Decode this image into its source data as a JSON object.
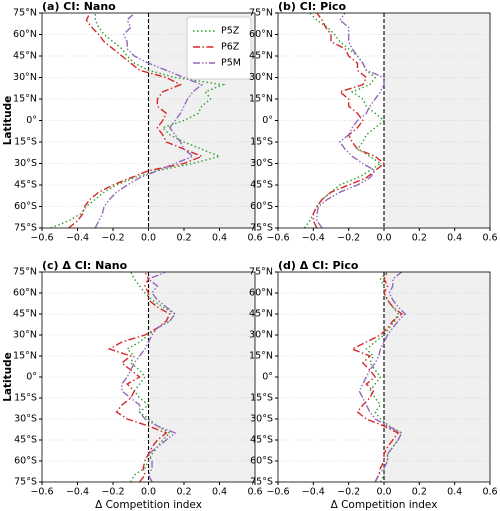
{
  "chart_data": [
    {
      "type": "line",
      "title": "(a) CI: Nano",
      "ylabel": "Latitude",
      "legend": "upper right",
      "grid": true,
      "shade_positive": true,
      "refline": 0,
      "xlim": [
        -0.6,
        0.6
      ],
      "xticks": [
        {
          "value": -0.6,
          "label": "−0.6"
        },
        {
          "value": -0.4,
          "label": "−0.4"
        },
        {
          "value": -0.2,
          "label": "−0.2"
        },
        {
          "value": 0,
          "label": "0.0"
        },
        {
          "value": 0.2,
          "label": "0.2"
        },
        {
          "value": 0.4,
          "label": "0.4"
        },
        {
          "value": 0.6,
          "label": "0.6"
        }
      ],
      "ylim": [
        -75,
        75
      ],
      "yticks": [
        {
          "value": -75,
          "label": "75°S"
        },
        {
          "value": -60,
          "label": "60°S"
        },
        {
          "value": -45,
          "label": "45°S"
        },
        {
          "value": -30,
          "label": "30°S"
        },
        {
          "value": -15,
          "label": "15°S"
        },
        {
          "value": 0,
          "label": "0°"
        },
        {
          "value": 15,
          "label": "15°N"
        },
        {
          "value": 30,
          "label": "30°N"
        },
        {
          "value": 45,
          "label": "45°N"
        },
        {
          "value": 60,
          "label": "60°N"
        },
        {
          "value": 75,
          "label": "75°N"
        }
      ],
      "y": [
        -75,
        -70,
        -65,
        -60,
        -55,
        -50,
        -45,
        -40,
        -35,
        -30,
        -25,
        -20,
        -15,
        -10,
        -5,
        0,
        5,
        10,
        15,
        20,
        25,
        30,
        35,
        40,
        45,
        50,
        55,
        60,
        65,
        70,
        75
      ],
      "series": [
        {
          "name": "P5Z",
          "color": "#2ca02c",
          "style": "dotted",
          "values": [
            -0.55,
            -0.45,
            -0.38,
            -0.35,
            -0.3,
            -0.25,
            -0.18,
            -0.08,
            0.05,
            0.25,
            0.4,
            0.3,
            0.2,
            0.12,
            0.08,
            0.2,
            0.28,
            0.3,
            0.35,
            0.32,
            0.42,
            0.15,
            0.0,
            -0.08,
            -0.12,
            -0.15,
            -0.2,
            -0.25,
            -0.28,
            -0.3,
            -0.3
          ]
        },
        {
          "name": "P6Z",
          "color": "#d62728",
          "style": "dashdot",
          "values": [
            -0.45,
            -0.4,
            -0.37,
            -0.36,
            -0.33,
            -0.28,
            -0.2,
            -0.1,
            0.0,
            0.2,
            0.3,
            0.2,
            0.1,
            0.08,
            0.05,
            0.08,
            0.1,
            0.05,
            0.05,
            0.08,
            0.18,
            0.1,
            -0.05,
            -0.1,
            -0.15,
            -0.2,
            -0.25,
            -0.28,
            -0.32,
            -0.35,
            -0.33
          ]
        },
        {
          "name": "P5M",
          "color": "#9467bd",
          "style": "dashdotdot",
          "values": [
            -0.3,
            -0.28,
            -0.26,
            -0.25,
            -0.22,
            -0.18,
            -0.12,
            -0.05,
            0.05,
            0.15,
            0.25,
            0.2,
            0.18,
            0.15,
            0.12,
            0.15,
            0.18,
            0.2,
            0.22,
            0.25,
            0.3,
            0.2,
            0.1,
            0.0,
            -0.08,
            -0.12,
            -0.12,
            -0.14,
            -0.1,
            -0.12,
            -0.08
          ]
        }
      ]
    },
    {
      "type": "line",
      "title": "(b) CI: Pico",
      "grid": true,
      "shade_positive": true,
      "refline": 0,
      "xlim": [
        -0.6,
        0.6
      ],
      "xticks": [
        {
          "value": -0.6,
          "label": "−0.6"
        },
        {
          "value": -0.4,
          "label": "−0.4"
        },
        {
          "value": -0.2,
          "label": "−0.2"
        },
        {
          "value": 0,
          "label": "0.0"
        },
        {
          "value": 0.2,
          "label": "0.2"
        },
        {
          "value": 0.4,
          "label": "0.4"
        },
        {
          "value": 0.6,
          "label": "0.6"
        }
      ],
      "ylim": [
        -75,
        75
      ],
      "yticks": [
        {
          "value": -75,
          "label": "75°S"
        },
        {
          "value": -60,
          "label": "60°S"
        },
        {
          "value": -45,
          "label": "45°S"
        },
        {
          "value": -30,
          "label": "30°S"
        },
        {
          "value": -15,
          "label": "15°S"
        },
        {
          "value": 0,
          "label": "0°"
        },
        {
          "value": 15,
          "label": "15°N"
        },
        {
          "value": 30,
          "label": "30°N"
        },
        {
          "value": 45,
          "label": "45°N"
        },
        {
          "value": 60,
          "label": "60°N"
        },
        {
          "value": 75,
          "label": "75°N"
        }
      ],
      "y": [
        -75,
        -70,
        -65,
        -60,
        -55,
        -50,
        -45,
        -40,
        -35,
        -30,
        -25,
        -20,
        -15,
        -10,
        -5,
        0,
        5,
        10,
        15,
        20,
        25,
        30,
        35,
        40,
        45,
        50,
        55,
        60,
        65,
        70,
        75
      ],
      "series": [
        {
          "color": "#2ca02c",
          "style": "dotted",
          "values": [
            -0.45,
            -0.42,
            -0.4,
            -0.38,
            -0.35,
            -0.3,
            -0.25,
            -0.15,
            -0.08,
            -0.02,
            -0.08,
            -0.15,
            -0.12,
            -0.1,
            -0.05,
            0.0,
            -0.05,
            -0.1,
            -0.12,
            -0.18,
            -0.08,
            -0.05,
            -0.1,
            -0.12,
            -0.15,
            -0.2,
            -0.25,
            -0.28,
            -0.32,
            -0.38,
            -0.42
          ]
        },
        {
          "color": "#d62728",
          "style": "dashdot",
          "values": [
            -0.38,
            -0.4,
            -0.4,
            -0.38,
            -0.35,
            -0.3,
            -0.2,
            -0.1,
            -0.05,
            0.0,
            -0.05,
            -0.15,
            -0.18,
            -0.2,
            -0.15,
            -0.12,
            -0.15,
            -0.2,
            -0.2,
            -0.25,
            -0.12,
            -0.1,
            -0.15,
            -0.15,
            -0.2,
            -0.22,
            -0.3,
            -0.3,
            -0.33,
            -0.35,
            -0.38
          ]
        },
        {
          "color": "#9467bd",
          "style": "dashdotdot",
          "values": [
            -0.35,
            -0.38,
            -0.38,
            -0.37,
            -0.32,
            -0.25,
            -0.15,
            -0.08,
            -0.05,
            -0.12,
            -0.18,
            -0.22,
            -0.25,
            -0.2,
            -0.18,
            -0.15,
            -0.1,
            -0.08,
            -0.05,
            -0.02,
            0.0,
            0.0,
            -0.1,
            -0.12,
            -0.15,
            -0.18,
            -0.2,
            -0.2,
            -0.2,
            -0.25,
            -0.22
          ]
        }
      ]
    },
    {
      "type": "line",
      "title": "(c) Δ CI: Nano",
      "xlabel": "Δ Competition index",
      "ylabel": "Latitude",
      "grid": true,
      "shade_positive": true,
      "refline": 0,
      "xlim": [
        -0.6,
        0.6
      ],
      "xticks": [
        {
          "value": -0.6,
          "label": "−0.6"
        },
        {
          "value": -0.4,
          "label": "−0.4"
        },
        {
          "value": -0.2,
          "label": "−0.2"
        },
        {
          "value": 0,
          "label": "0.0"
        },
        {
          "value": 0.2,
          "label": "0.2"
        },
        {
          "value": 0.4,
          "label": "0.4"
        },
        {
          "value": 0.6,
          "label": "0.6"
        }
      ],
      "ylim": [
        -75,
        75
      ],
      "yticks": [
        {
          "value": -75,
          "label": "75°S"
        },
        {
          "value": -60,
          "label": "60°S"
        },
        {
          "value": -45,
          "label": "45°S"
        },
        {
          "value": -30,
          "label": "30°S"
        },
        {
          "value": -15,
          "label": "15°S"
        },
        {
          "value": 0,
          "label": "0°"
        },
        {
          "value": 15,
          "label": "15°N"
        },
        {
          "value": 30,
          "label": "30°N"
        },
        {
          "value": 45,
          "label": "45°N"
        },
        {
          "value": 60,
          "label": "60°N"
        },
        {
          "value": 75,
          "label": "75°N"
        }
      ],
      "y": [
        -75,
        -70,
        -65,
        -60,
        -55,
        -50,
        -45,
        -40,
        -35,
        -30,
        -25,
        -20,
        -15,
        -10,
        -5,
        0,
        5,
        10,
        15,
        20,
        25,
        30,
        35,
        40,
        45,
        50,
        55,
        60,
        65,
        70,
        75
      ],
      "series": [
        {
          "color": "#2ca02c",
          "style": "dotted",
          "values": [
            -0.1,
            -0.08,
            -0.02,
            0.0,
            0.02,
            0.05,
            0.08,
            0.12,
            0.05,
            0.0,
            -0.05,
            0.0,
            -0.05,
            -0.08,
            -0.05,
            -0.02,
            -0.05,
            -0.1,
            -0.08,
            -0.12,
            -0.05,
            0.0,
            0.05,
            0.12,
            0.15,
            0.08,
            0.02,
            -0.02,
            -0.05,
            -0.08,
            -0.1
          ]
        },
        {
          "color": "#d62728",
          "style": "dashdot",
          "values": [
            -0.05,
            -0.02,
            -0.03,
            -0.02,
            0.0,
            0.02,
            0.05,
            0.1,
            0.0,
            -0.12,
            -0.18,
            -0.15,
            -0.1,
            -0.08,
            -0.12,
            -0.05,
            -0.1,
            -0.15,
            -0.1,
            -0.22,
            -0.15,
            -0.02,
            0.05,
            0.1,
            0.12,
            0.05,
            0.0,
            0.0,
            -0.02,
            0.0,
            -0.02
          ]
        },
        {
          "color": "#9467bd",
          "style": "dashdotdot",
          "values": [
            0.02,
            0.0,
            0.02,
            0.02,
            0.0,
            0.05,
            0.1,
            0.15,
            0.05,
            -0.02,
            -0.05,
            -0.05,
            -0.1,
            -0.15,
            -0.15,
            -0.12,
            -0.1,
            -0.08,
            -0.05,
            -0.02,
            0.0,
            0.02,
            0.05,
            0.12,
            0.15,
            0.1,
            0.05,
            0.02,
            0.05,
            0.0,
            0.1
          ]
        }
      ]
    },
    {
      "type": "line",
      "title": "(d) Δ CI: Pico",
      "xlabel": "Δ Competition index",
      "grid": true,
      "shade_positive": true,
      "refline": 0,
      "xlim": [
        -0.6,
        0.6
      ],
      "xticks": [
        {
          "value": -0.6,
          "label": "−0.6"
        },
        {
          "value": -0.4,
          "label": "−0.4"
        },
        {
          "value": -0.2,
          "label": "−0.2"
        },
        {
          "value": 0,
          "label": "0.0"
        },
        {
          "value": 0.2,
          "label": "0.2"
        },
        {
          "value": 0.4,
          "label": "0.4"
        },
        {
          "value": 0.6,
          "label": "0.6"
        }
      ],
      "ylim": [
        -75,
        75
      ],
      "yticks": [
        {
          "value": -75,
          "label": "75°S"
        },
        {
          "value": -60,
          "label": "60°S"
        },
        {
          "value": -45,
          "label": "45°S"
        },
        {
          "value": -30,
          "label": "30°S"
        },
        {
          "value": -15,
          "label": "15°S"
        },
        {
          "value": 0,
          "label": "0°"
        },
        {
          "value": 15,
          "label": "15°N"
        },
        {
          "value": 30,
          "label": "30°N"
        },
        {
          "value": 45,
          "label": "45°N"
        },
        {
          "value": 60,
          "label": "60°N"
        },
        {
          "value": 75,
          "label": "75°N"
        }
      ],
      "y": [
        -75,
        -70,
        -65,
        -60,
        -55,
        -50,
        -45,
        -40,
        -35,
        -30,
        -25,
        -20,
        -15,
        -10,
        -5,
        0,
        5,
        10,
        15,
        20,
        25,
        30,
        35,
        40,
        45,
        50,
        55,
        60,
        65,
        70,
        75
      ],
      "series": [
        {
          "color": "#2ca02c",
          "style": "dotted",
          "values": [
            -0.02,
            0.0,
            0.0,
            0.02,
            0.02,
            0.05,
            0.08,
            0.1,
            0.03,
            -0.02,
            -0.05,
            -0.02,
            -0.05,
            -0.08,
            -0.05,
            -0.02,
            -0.05,
            -0.08,
            -0.06,
            -0.1,
            -0.05,
            0.0,
            0.03,
            0.06,
            0.08,
            0.05,
            0.02,
            0.0,
            0.0,
            -0.02,
            0.02
          ]
        },
        {
          "color": "#d62728",
          "style": "dashdot",
          "values": [
            -0.05,
            -0.03,
            -0.02,
            0.0,
            0.0,
            0.02,
            0.05,
            0.08,
            0.0,
            -0.1,
            -0.15,
            -0.12,
            -0.08,
            -0.06,
            -0.1,
            -0.05,
            -0.08,
            -0.12,
            -0.08,
            -0.18,
            -0.1,
            -0.02,
            0.02,
            0.05,
            0.1,
            0.05,
            0.02,
            0.0,
            0.02,
            0.0,
            0.02
          ]
        },
        {
          "color": "#9467bd",
          "style": "dashdotdot",
          "values": [
            -0.05,
            -0.03,
            0.0,
            0.02,
            0.02,
            0.05,
            0.08,
            0.1,
            0.02,
            -0.05,
            -0.08,
            -0.1,
            -0.12,
            -0.14,
            -0.12,
            -0.1,
            -0.08,
            -0.05,
            -0.03,
            -0.02,
            0.0,
            0.02,
            0.05,
            0.08,
            0.12,
            0.08,
            0.05,
            0.03,
            0.05,
            0.05,
            0.1
          ]
        }
      ]
    }
  ]
}
